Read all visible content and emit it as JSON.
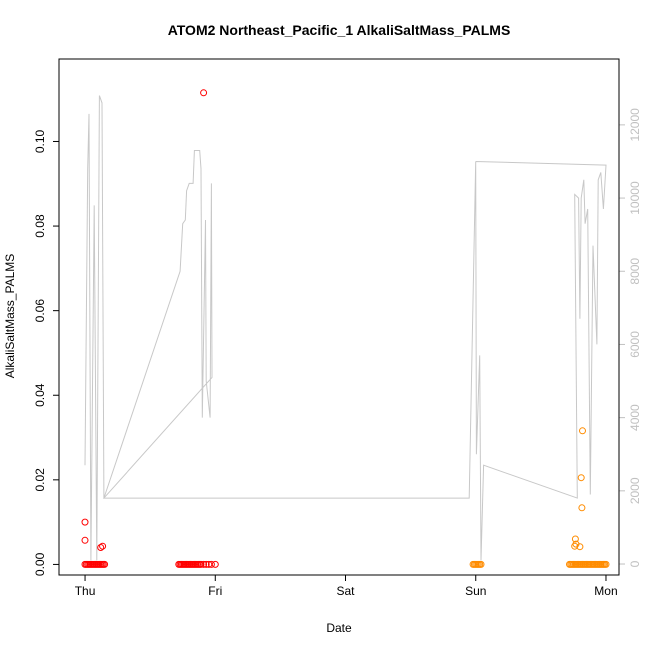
{
  "chart_data": {
    "type": "scatter",
    "title": "ATOM2 Northeast_Pacific_1 AlkaliSaltMass_PALMS",
    "xlabel": "Date",
    "ylabel": "AlkaliSaltMass_PALMS",
    "x_unit": "days since Thu 00:00",
    "xlim": [
      -0.2,
      4.1
    ],
    "ylim": [
      -0.0025,
      0.1195
    ],
    "y2lim": [
      -300,
      13800
    ],
    "x_ticks": [
      {
        "label": "Thu",
        "value": 0
      },
      {
        "label": "Fri",
        "value": 1
      },
      {
        "label": "Sat",
        "value": 2
      },
      {
        "label": "Sun",
        "value": 3
      },
      {
        "label": "Mon",
        "value": 4
      }
    ],
    "y_ticks": [
      {
        "label": "0.00",
        "value": 0
      },
      {
        "label": "0.02",
        "value": 0.02
      },
      {
        "label": "0.04",
        "value": 0.04
      },
      {
        "label": "0.06",
        "value": 0.06
      },
      {
        "label": "0.08",
        "value": 0.08
      },
      {
        "label": "0.10",
        "value": 0.1
      }
    ],
    "y2_ticks": [
      {
        "label": "0",
        "value": 0
      },
      {
        "label": "2000",
        "value": 2000
      },
      {
        "label": "4000",
        "value": 4000
      },
      {
        "label": "6000",
        "value": 6000
      },
      {
        "label": "8000",
        "value": 8000
      },
      {
        "label": "10000",
        "value": 10000
      },
      {
        "label": "12000",
        "value": 12000
      }
    ],
    "colors": {
      "red": "#ff0000",
      "orange": "#ff8c00",
      "altitude": "#c8c8c8"
    },
    "series": [
      {
        "color": "red",
        "marker": "open-circle",
        "points": [
          [
            0.0,
            0.0
          ],
          [
            0.01,
            0.0
          ],
          [
            0.02,
            0.0
          ],
          [
            0.03,
            0.0
          ],
          [
            0.04,
            0.0
          ],
          [
            0.05,
            0.0
          ],
          [
            0.06,
            0.0
          ],
          [
            0.07,
            0.0
          ],
          [
            0.08,
            0.0
          ],
          [
            0.09,
            0.0
          ],
          [
            0.1,
            0.0
          ],
          [
            0.11,
            0.0
          ],
          [
            0.12,
            0.0
          ],
          [
            0.13,
            0.0
          ],
          [
            0.14,
            0.0
          ],
          [
            0.15,
            0.0
          ],
          [
            0.0,
            0.01
          ],
          [
            0.0,
            0.0057
          ],
          [
            0.12,
            0.004
          ],
          [
            0.135,
            0.0043
          ],
          [
            0.72,
            0.0
          ],
          [
            0.73,
            0.0
          ],
          [
            0.74,
            0.0
          ],
          [
            0.75,
            0.0
          ],
          [
            0.76,
            0.0
          ],
          [
            0.77,
            0.0
          ],
          [
            0.78,
            0.0
          ],
          [
            0.79,
            0.0
          ],
          [
            0.8,
            0.0
          ],
          [
            0.81,
            0.0
          ],
          [
            0.82,
            0.0
          ],
          [
            0.83,
            0.0
          ],
          [
            0.84,
            0.0
          ],
          [
            0.85,
            0.0
          ],
          [
            0.86,
            0.0
          ],
          [
            0.87,
            0.0
          ],
          [
            0.88,
            0.0
          ],
          [
            0.89,
            0.0
          ],
          [
            0.91,
            0.0
          ],
          [
            0.93,
            0.0
          ],
          [
            0.95,
            0.0
          ],
          [
            0.97,
            0.0
          ],
          [
            1.0,
            0.0
          ],
          [
            0.91,
            0.1115
          ]
        ]
      },
      {
        "color": "orange",
        "marker": "open-circle",
        "points": [
          [
            2.98,
            0.0
          ],
          [
            2.99,
            0.0
          ],
          [
            3.0,
            0.0
          ],
          [
            3.01,
            0.0
          ],
          [
            3.02,
            0.0
          ],
          [
            3.03,
            0.0
          ],
          [
            3.04,
            0.0
          ],
          [
            3.72,
            0.0
          ],
          [
            3.73,
            0.0
          ],
          [
            3.74,
            0.0
          ],
          [
            3.75,
            0.0
          ],
          [
            3.76,
            0.0
          ],
          [
            3.77,
            0.0
          ],
          [
            3.78,
            0.0
          ],
          [
            3.79,
            0.0
          ],
          [
            3.8,
            0.0
          ],
          [
            3.81,
            0.0
          ],
          [
            3.82,
            0.0
          ],
          [
            3.83,
            0.0
          ],
          [
            3.84,
            0.0
          ],
          [
            3.85,
            0.0
          ],
          [
            3.86,
            0.0
          ],
          [
            3.87,
            0.0
          ],
          [
            3.88,
            0.0
          ],
          [
            3.89,
            0.0
          ],
          [
            3.9,
            0.0
          ],
          [
            3.91,
            0.0
          ],
          [
            3.92,
            0.0
          ],
          [
            3.93,
            0.0
          ],
          [
            3.94,
            0.0
          ],
          [
            3.95,
            0.0
          ],
          [
            3.96,
            0.0
          ],
          [
            3.97,
            0.0
          ],
          [
            3.98,
            0.0
          ],
          [
            3.99,
            0.0
          ],
          [
            4.0,
            0.0
          ],
          [
            3.76,
            0.0043
          ],
          [
            3.765,
            0.006
          ],
          [
            3.77,
            0.0048
          ],
          [
            3.8,
            0.0042
          ],
          [
            3.81,
            0.0205
          ],
          [
            3.815,
            0.0134
          ],
          [
            3.82,
            0.0316
          ]
        ]
      },
      {
        "name": "altitude",
        "axis": "right",
        "color": "altitude",
        "style": "line",
        "points": [
          [
            0.0,
            2700
          ],
          [
            0.02,
            10800
          ],
          [
            0.03,
            12300
          ],
          [
            0.045,
            100
          ],
          [
            0.07,
            9800
          ],
          [
            0.09,
            100
          ],
          [
            0.11,
            12800
          ],
          [
            0.13,
            12600
          ],
          [
            0.145,
            1800
          ],
          [
            0.73,
            8000
          ],
          [
            0.75,
            9300
          ],
          [
            0.77,
            9400
          ],
          [
            0.78,
            10200
          ],
          [
            0.8,
            10400
          ],
          [
            0.83,
            10400
          ],
          [
            0.84,
            11300
          ],
          [
            0.88,
            11300
          ],
          [
            0.89,
            10800
          ],
          [
            0.9,
            4000
          ],
          [
            0.925,
            9400
          ],
          [
            0.93,
            5000
          ],
          [
            0.96,
            4000
          ],
          [
            0.97,
            10400
          ],
          [
            0.975,
            5100
          ],
          [
            0.145,
            1800
          ],
          [
            2.95,
            1800
          ],
          [
            3.0,
            11000
          ],
          [
            3.005,
            3000
          ],
          [
            3.03,
            5700
          ],
          [
            3.04,
            100
          ],
          [
            3.06,
            2700
          ],
          [
            3.78,
            1800
          ],
          [
            3.76,
            10100
          ],
          [
            3.79,
            10000
          ],
          [
            3.8,
            6700
          ],
          [
            3.81,
            10000
          ],
          [
            3.83,
            10500
          ],
          [
            3.84,
            9300
          ],
          [
            3.86,
            9700
          ],
          [
            3.88,
            1900
          ],
          [
            3.9,
            8700
          ],
          [
            3.93,
            6000
          ],
          [
            3.94,
            10500
          ],
          [
            3.96,
            10700
          ],
          [
            3.98,
            9700
          ],
          [
            4.0,
            10900
          ],
          [
            3.0,
            11000
          ]
        ]
      }
    ]
  }
}
